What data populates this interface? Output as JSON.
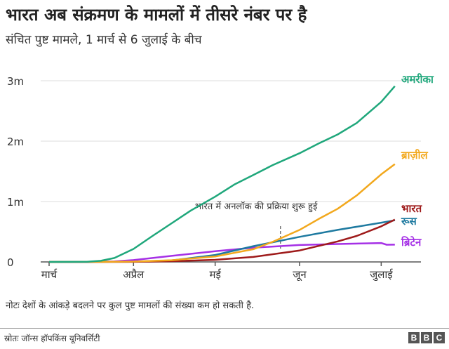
{
  "header": {
    "title": "भारत अब संक्रमण के मामलों में तीसरे नंबर पर है",
    "subtitle": "संचित पुष्ट मामले, 1 मार्च से 6 जुलाई के बीच"
  },
  "chart_data": {
    "type": "line",
    "title": "भारत अब संक्रमण के मामलों में तीसरे नंबर पर है",
    "subtitle": "संचित पुष्ट मामले, 1 मार्च से 6 जुलाई के बीच",
    "xlabel": "",
    "ylabel": "",
    "ylim": [
      0,
      3000000
    ],
    "y_ticks": [
      {
        "value": 0,
        "label": "0"
      },
      {
        "value": 1000000,
        "label": "1m"
      },
      {
        "value": 2000000,
        "label": "2m"
      },
      {
        "value": 3000000,
        "label": "3m"
      }
    ],
    "x_ticks": [
      {
        "date": "03-01",
        "label": "मार्च"
      },
      {
        "date": "04-01",
        "label": "अप्रैल"
      },
      {
        "date": "05-01",
        "label": "मई"
      },
      {
        "date": "06-01",
        "label": "जून"
      },
      {
        "date": "07-01",
        "label": "जुलाई"
      }
    ],
    "grid": true,
    "series": [
      {
        "name": "अमरीका",
        "color": "#1fa77b",
        "points": [
          [
            "03-01",
            0
          ],
          [
            "03-10",
            1000
          ],
          [
            "03-15",
            3500
          ],
          [
            "03-20",
            19000
          ],
          [
            "03-25",
            65000
          ],
          [
            "04-01",
            215000
          ],
          [
            "04-08",
            430000
          ],
          [
            "04-15",
            640000
          ],
          [
            "04-22",
            850000
          ],
          [
            "05-01",
            1080000
          ],
          [
            "05-08",
            1280000
          ],
          [
            "05-15",
            1440000
          ],
          [
            "05-22",
            1600000
          ],
          [
            "06-01",
            1800000
          ],
          [
            "06-08",
            1960000
          ],
          [
            "06-15",
            2110000
          ],
          [
            "06-22",
            2300000
          ],
          [
            "07-01",
            2650000
          ],
          [
            "07-06",
            2910000
          ]
        ]
      },
      {
        "name": "ब्राज़ील",
        "color": "#f2a81d",
        "points": [
          [
            "03-01",
            0
          ],
          [
            "03-20",
            1000
          ],
          [
            "04-01",
            6000
          ],
          [
            "04-15",
            28000
          ],
          [
            "05-01",
            90000
          ],
          [
            "05-15",
            210000
          ],
          [
            "05-22",
            330000
          ],
          [
            "06-01",
            530000
          ],
          [
            "06-08",
            710000
          ],
          [
            "06-15",
            880000
          ],
          [
            "06-22",
            1100000
          ],
          [
            "07-01",
            1450000
          ],
          [
            "07-06",
            1620000
          ]
        ]
      },
      {
        "name": "भारत",
        "color": "#9e1a1a",
        "points": [
          [
            "03-01",
            0
          ],
          [
            "04-01",
            1600
          ],
          [
            "04-15",
            12000
          ],
          [
            "05-01",
            35000
          ],
          [
            "05-15",
            82000
          ],
          [
            "06-01",
            190000
          ],
          [
            "06-15",
            340000
          ],
          [
            "06-22",
            430000
          ],
          [
            "07-01",
            590000
          ],
          [
            "07-06",
            700000
          ]
        ]
      },
      {
        "name": "रूस",
        "color": "#1e7aa0",
        "points": [
          [
            "03-01",
            0
          ],
          [
            "04-01",
            3000
          ],
          [
            "04-15",
            25000
          ],
          [
            "05-01",
            115000
          ],
          [
            "05-15",
            260000
          ],
          [
            "06-01",
            415000
          ],
          [
            "06-15",
            530000
          ],
          [
            "07-01",
            650000
          ],
          [
            "07-06",
            690000
          ]
        ]
      },
      {
        "name": "ब्रिटेन",
        "color": "#a530e6",
        "points": [
          [
            "03-01",
            0
          ],
          [
            "03-15",
            1400
          ],
          [
            "03-25",
            9000
          ],
          [
            "04-01",
            30000
          ],
          [
            "04-15",
            100000
          ],
          [
            "05-01",
            178000
          ],
          [
            "05-15",
            235000
          ],
          [
            "06-01",
            280000
          ],
          [
            "06-15",
            297000
          ],
          [
            "07-01",
            313000
          ],
          [
            "07-03",
            285000
          ],
          [
            "07-06",
            286000
          ]
        ]
      }
    ],
    "annotations": [
      {
        "date": "05-25",
        "text": "भारत में अनलॉक की प्रक्रिया शुरू हुई"
      }
    ]
  },
  "footer": {
    "note": "नोटः देशों के आंकड़े बदलने पर कुल पुष्ट मामलों की संख्या कम हो सकती है.",
    "source": "स्रोतः जॉन्स हॉपकिंस यूनिवर्सिटी",
    "logo": [
      "B",
      "B",
      "C"
    ]
  }
}
